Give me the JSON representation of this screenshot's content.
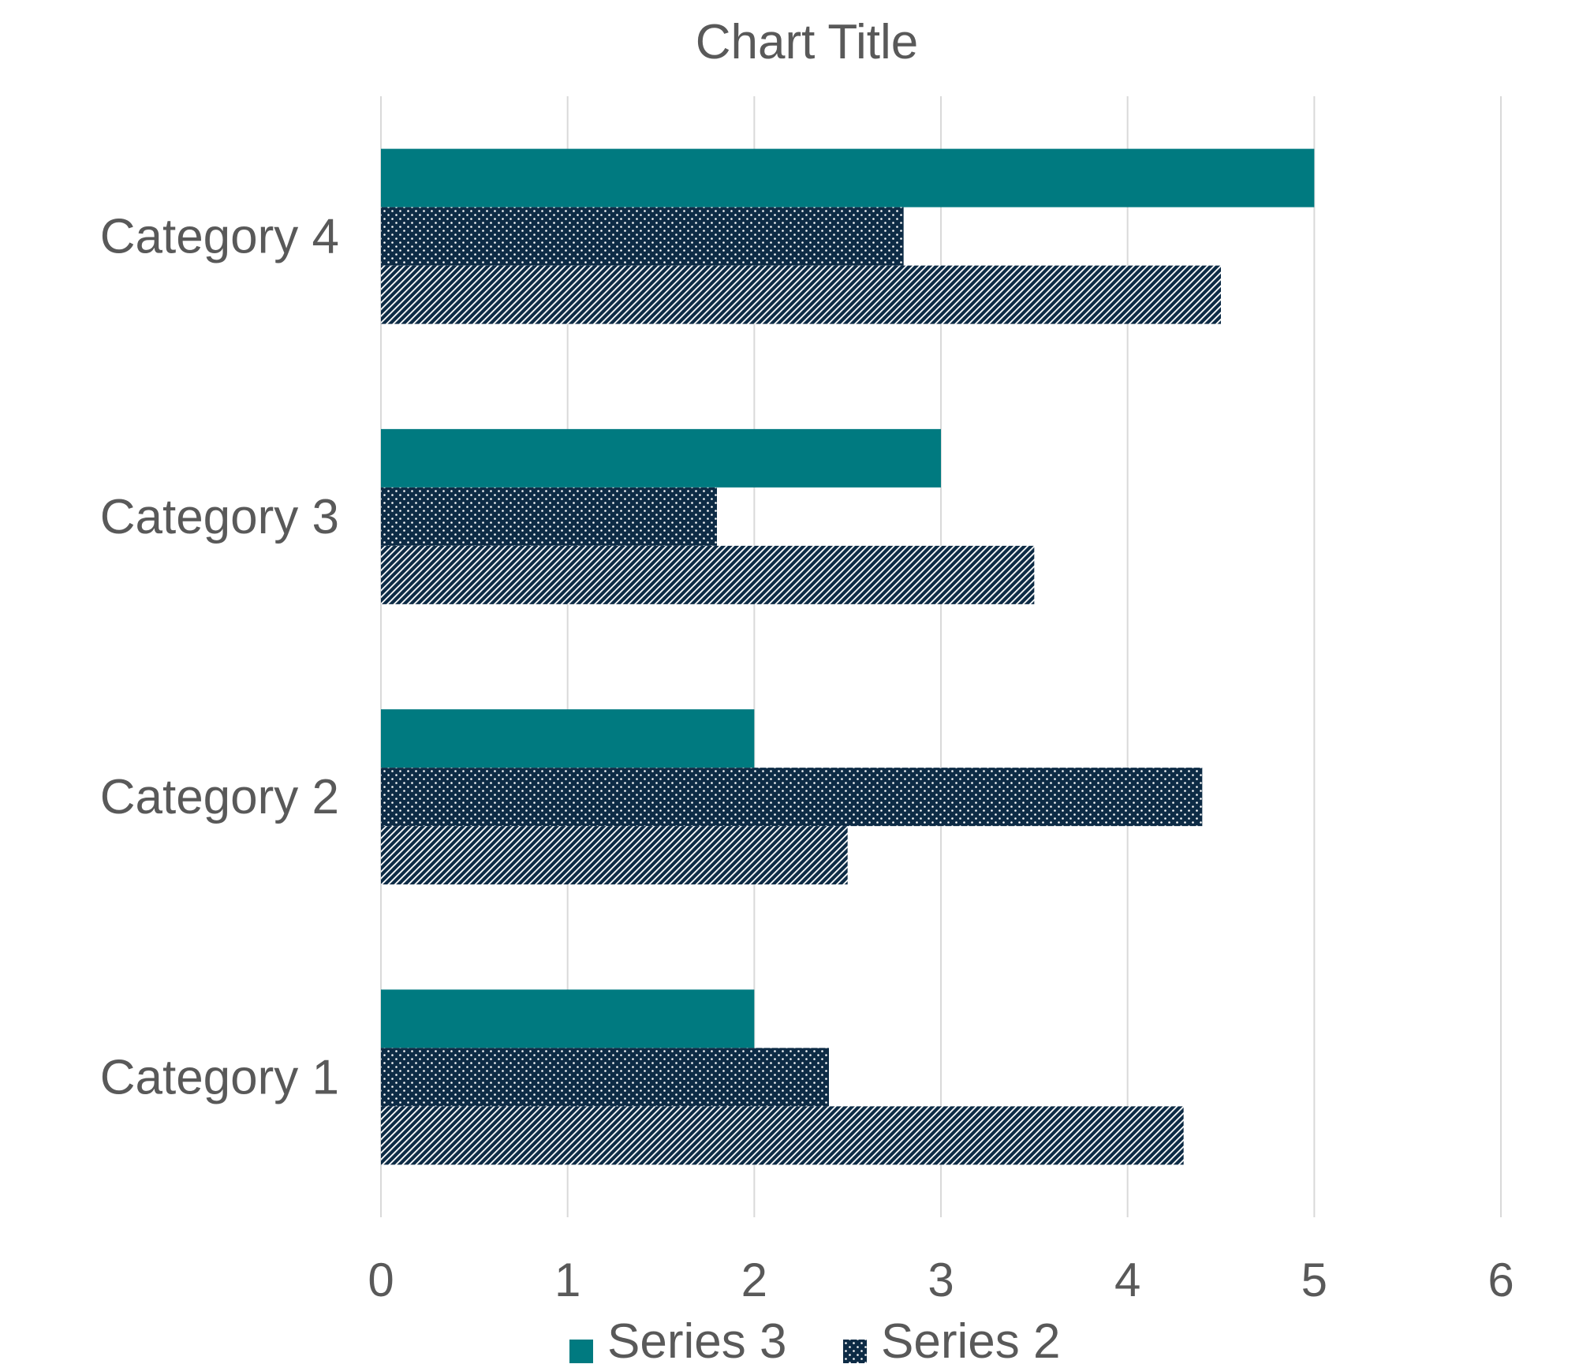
{
  "chart_data": {
    "type": "bar",
    "orientation": "horizontal",
    "title": "Chart Title",
    "categories": [
      "Category 1",
      "Category 2",
      "Category 3",
      "Category 4"
    ],
    "series": [
      {
        "name": "Series 3",
        "values": [
          2,
          2,
          3,
          5
        ],
        "color": "#007a80",
        "pattern": "solid"
      },
      {
        "name": "Series 2",
        "values": [
          2.4,
          4.4,
          1.8,
          2.8
        ],
        "color": "#0d2b45",
        "pattern": "dots"
      },
      {
        "name": "",
        "values": [
          4.3,
          2.5,
          3.5,
          4.5
        ],
        "color": "#0d2b45",
        "pattern": "diagonal-stripes"
      }
    ],
    "xlim": [
      0,
      6
    ],
    "xticks": [
      0,
      1,
      2,
      3,
      4,
      5,
      6
    ],
    "xlabel": "",
    "ylabel": "",
    "grid": "vertical",
    "legend": {
      "placement": "bottom",
      "entries": [
        "Series 3",
        "Series 2"
      ]
    }
  }
}
